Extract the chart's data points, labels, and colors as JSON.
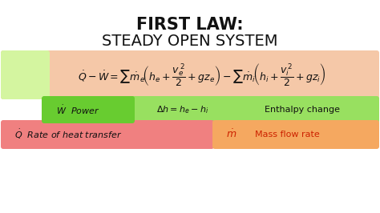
{
  "title_line1": "FIRST LAW:",
  "title_line2": "STEADY OPEN SYSTEM",
  "bg_color": "#f5f5f0",
  "eq_salmon": "#f5c8a8",
  "eq_light_green": "#d4f5a0",
  "green_dark": "#80d840",
  "green_light": "#a8e860",
  "red_pink": "#f08080",
  "orange": "#f5a860",
  "title1_size": 15,
  "title2_size": 14,
  "eq_fontsize": 9,
  "label_fontsize": 8
}
